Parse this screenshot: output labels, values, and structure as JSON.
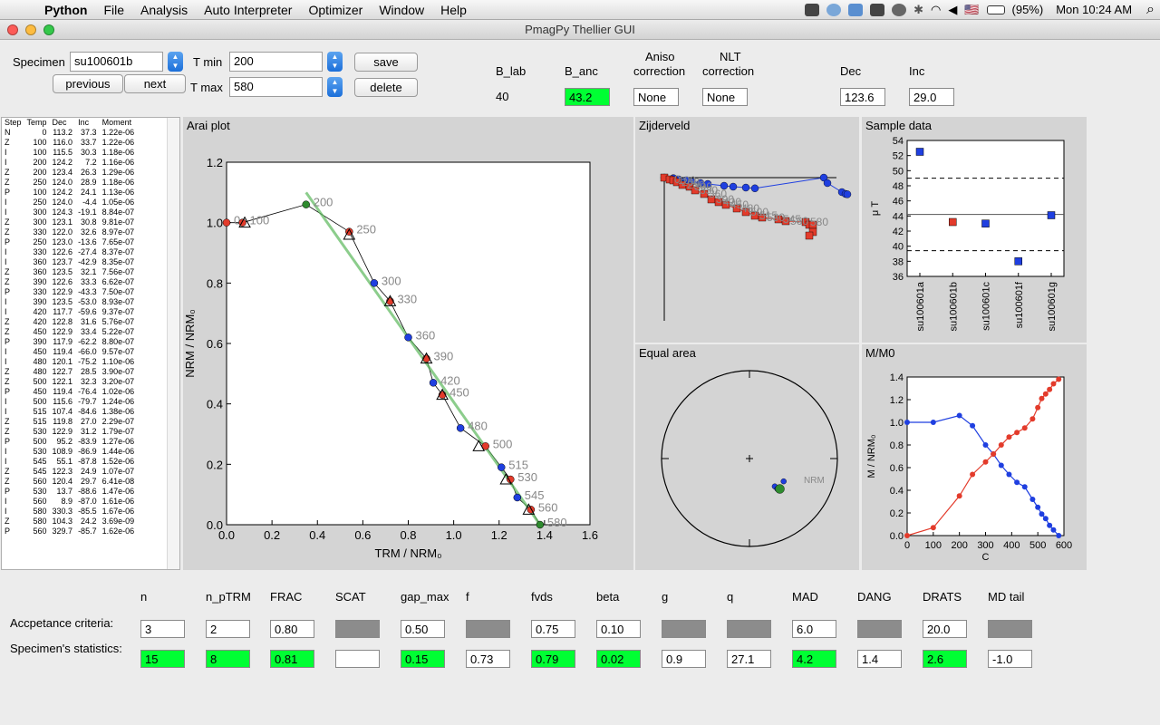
{
  "menubar": {
    "app": "Python",
    "items": [
      "File",
      "Analysis",
      "Auto Interpreter",
      "Optimizer",
      "Window",
      "Help"
    ],
    "battery": "(95%)",
    "clock": "Mon 10:24 AM",
    "flag": "🇺🇸",
    "search": "⌕"
  },
  "window": {
    "title": "PmagPy Thellier GUI"
  },
  "controls": {
    "specimen_label": "Specimen",
    "specimen_value": "su100601b",
    "tmin_label": "T min",
    "tmin_value": "200",
    "tmax_label": "T max",
    "tmax_value": "580",
    "save": "save",
    "delete": "delete",
    "previous": "previous",
    "next": "next"
  },
  "summary": {
    "blab_label": "B_lab",
    "blab_value": "40",
    "banc_label": "B_anc",
    "banc_value": "43.2",
    "aniso_label1": "Aniso",
    "aniso_label2": "correction",
    "aniso_value": "None",
    "nlt_label1": "NLT",
    "nlt_label2": "correction",
    "nlt_value": "None",
    "dec_label": "Dec",
    "dec_value": "123.6",
    "inc_label": "Inc",
    "inc_value": "29.0"
  },
  "log": {
    "headers": [
      "Step",
      "Temp",
      "Dec",
      "Inc",
      "Moment"
    ],
    "rows": [
      [
        "N",
        "0",
        "113.2",
        "37.3",
        "1.22e-06"
      ],
      [
        "Z",
        "100",
        "116.0",
        "33.7",
        "1.22e-06"
      ],
      [
        "I",
        "100",
        "115.5",
        "30.3",
        "1.18e-06"
      ],
      [
        "I",
        "200",
        "124.2",
        "7.2",
        "1.16e-06"
      ],
      [
        "Z",
        "200",
        "123.4",
        "26.3",
        "1.29e-06"
      ],
      [
        "Z",
        "250",
        "124.0",
        "28.9",
        "1.18e-06"
      ],
      [
        "P",
        "100",
        "124.2",
        "24.1",
        "1.13e-06"
      ],
      [
        "I",
        "250",
        "124.0",
        "-4.4",
        "1.05e-06"
      ],
      [
        "I",
        "300",
        "124.3",
        "-19.1",
        "8.84e-07"
      ],
      [
        "Z",
        "300",
        "123.1",
        "30.8",
        "9.81e-07"
      ],
      [
        "Z",
        "330",
        "122.0",
        "32.6",
        "8.97e-07"
      ],
      [
        "P",
        "250",
        "123.0",
        "-13.6",
        "7.65e-07"
      ],
      [
        "I",
        "330",
        "122.6",
        "-27.4",
        "8.37e-07"
      ],
      [
        "I",
        "360",
        "123.7",
        "-42.9",
        "8.35e-07"
      ],
      [
        "Z",
        "360",
        "123.5",
        "32.1",
        "7.56e-07"
      ],
      [
        "Z",
        "390",
        "122.6",
        "33.3",
        "6.62e-07"
      ],
      [
        "P",
        "330",
        "122.9",
        "-43.3",
        "7.50e-07"
      ],
      [
        "I",
        "390",
        "123.5",
        "-53.0",
        "8.93e-07"
      ],
      [
        "I",
        "420",
        "117.7",
        "-59.6",
        "9.37e-07"
      ],
      [
        "Z",
        "420",
        "122.8",
        "31.6",
        "5.76e-07"
      ],
      [
        "Z",
        "450",
        "122.9",
        "33.4",
        "5.22e-07"
      ],
      [
        "P",
        "390",
        "117.9",
        "-62.2",
        "8.80e-07"
      ],
      [
        "I",
        "450",
        "119.4",
        "-66.0",
        "9.57e-07"
      ],
      [
        "I",
        "480",
        "120.1",
        "-75.2",
        "1.10e-06"
      ],
      [
        "Z",
        "480",
        "122.7",
        "28.5",
        "3.90e-07"
      ],
      [
        "Z",
        "500",
        "122.1",
        "32.3",
        "3.20e-07"
      ],
      [
        "P",
        "450",
        "119.4",
        "-76.4",
        "1.02e-06"
      ],
      [
        "I",
        "500",
        "115.6",
        "-79.7",
        "1.24e-06"
      ],
      [
        "I",
        "515",
        "107.4",
        "-84.6",
        "1.38e-06"
      ],
      [
        "Z",
        "515",
        "119.8",
        "27.0",
        "2.29e-07"
      ],
      [
        "Z",
        "530",
        "122.9",
        "31.2",
        "1.79e-07"
      ],
      [
        "P",
        "500",
        "95.2",
        "-83.9",
        "1.27e-06"
      ],
      [
        "I",
        "530",
        "108.9",
        "-86.9",
        "1.44e-06"
      ],
      [
        "I",
        "545",
        "55.1",
        "-87.8",
        "1.52e-06"
      ],
      [
        "Z",
        "545",
        "122.3",
        "24.9",
        "1.07e-07"
      ],
      [
        "Z",
        "560",
        "120.4",
        "29.7",
        "6.41e-08"
      ],
      [
        "P",
        "530",
        "13.7",
        "-88.6",
        "1.47e-06"
      ],
      [
        "I",
        "560",
        "8.9",
        "-87.0",
        "1.61e-06"
      ],
      [
        "I",
        "580",
        "330.3",
        "-85.5",
        "1.67e-06"
      ],
      [
        "Z",
        "580",
        "104.3",
        "24.2",
        "3.69e-09"
      ],
      [
        "P",
        "560",
        "329.7",
        "-85.7",
        "1.62e-06"
      ]
    ]
  },
  "panels": {
    "arai": "Arai plot",
    "zij": "Zijderveld",
    "sample": "Sample data",
    "equal": "Equal area",
    "mm0": "M/M0"
  },
  "chart_data": [
    {
      "type": "scatter",
      "title": "Arai plot",
      "xlabel": "TRM / NRM₀",
      "ylabel": "NRM / NRM₀",
      "xlim": [
        0,
        1.6
      ],
      "ylim": [
        0,
        1.2
      ],
      "xticks": [
        "0.0",
        "0.2",
        "0.4",
        "0.6",
        "0.8",
        "1.0",
        "1.2",
        "1.4",
        "1.6"
      ],
      "yticks": [
        "0.0",
        "0.2",
        "0.4",
        "0.6",
        "0.8",
        "1.0",
        "1.2"
      ],
      "points": [
        [
          0,
          1.0,
          "0"
        ],
        [
          0.07,
          1.0,
          "100"
        ],
        [
          0.35,
          1.06,
          "200"
        ],
        [
          0.54,
          0.97,
          "250"
        ],
        [
          0.65,
          0.8,
          "300"
        ],
        [
          0.72,
          0.74,
          "330"
        ],
        [
          0.8,
          0.62,
          "360"
        ],
        [
          0.88,
          0.55,
          "390"
        ],
        [
          0.91,
          0.47,
          "420"
        ],
        [
          0.95,
          0.43,
          "450"
        ],
        [
          1.03,
          0.32,
          "480"
        ],
        [
          1.14,
          0.26,
          "500"
        ],
        [
          1.21,
          0.19,
          "515"
        ],
        [
          1.25,
          0.15,
          "530"
        ],
        [
          1.28,
          0.09,
          "545"
        ],
        [
          1.34,
          0.05,
          "560"
        ],
        [
          1.38,
          0.0,
          "580"
        ]
      ],
      "ptrm_checks": [
        [
          0.08,
          1.0
        ],
        [
          0.54,
          0.96
        ],
        [
          0.72,
          0.74
        ],
        [
          0.88,
          0.55
        ],
        [
          0.95,
          0.43
        ],
        [
          1.11,
          0.26
        ],
        [
          1.23,
          0.15
        ],
        [
          1.33,
          0.05
        ]
      ],
      "fit_line": [
        [
          0.35,
          1.1
        ],
        [
          1.38,
          0.0
        ]
      ]
    },
    {
      "type": "scatter",
      "title": "Zijderveld",
      "blue": [
        [
          0,
          0
        ],
        [
          5,
          -0.3
        ],
        [
          8,
          -1
        ],
        [
          12,
          -1.5
        ],
        [
          15,
          -2.2
        ],
        [
          20,
          -3
        ],
        [
          24,
          -3.5
        ],
        [
          33,
          -4.5
        ],
        [
          38,
          -5
        ],
        [
          45,
          -5.5
        ],
        [
          50,
          -5.9
        ],
        [
          88,
          0
        ],
        [
          90,
          -3
        ],
        [
          98,
          -8
        ],
        [
          100,
          -9
        ],
        [
          101,
          -9.2
        ]
      ],
      "red": [
        [
          0,
          0
        ],
        [
          3,
          -1
        ],
        [
          5,
          -1.5
        ],
        [
          7,
          -2.5
        ],
        [
          10,
          -4
        ],
        [
          14,
          -5
        ],
        [
          17,
          -7
        ],
        [
          22,
          -9
        ],
        [
          26,
          -12
        ],
        [
          30,
          -13.5
        ],
        [
          34,
          -15
        ],
        [
          40,
          -17
        ],
        [
          45,
          -19
        ],
        [
          50,
          -21
        ],
        [
          54,
          -22
        ],
        [
          63,
          -23
        ],
        [
          67,
          -24
        ],
        [
          78,
          -24.5
        ],
        [
          80,
          -26
        ],
        [
          82,
          -26
        ],
        [
          82,
          -30
        ],
        [
          80,
          -32
        ]
      ],
      "labels": [
        "0",
        "100",
        "200",
        "250",
        "300",
        "330",
        "360",
        "390",
        "420",
        "450",
        "480",
        "500",
        "515",
        "530",
        "545",
        "560",
        "580"
      ]
    },
    {
      "type": "scatter",
      "title": "Sample data",
      "ylabel": "μ T",
      "ylim": [
        36,
        54
      ],
      "yticks": [
        "36",
        "38",
        "40",
        "42",
        "44",
        "46",
        "48",
        "50",
        "52",
        "54"
      ],
      "categories": [
        "su100601a",
        "su100601b",
        "su100601c",
        "su100601f",
        "su100601g"
      ],
      "values": [
        52.5,
        43.2,
        43.0,
        38.0,
        44.1
      ],
      "mean": 44.2,
      "mean_plus": 49.0,
      "mean_minus": 39.4
    },
    {
      "type": "scatter",
      "title": "Equal area",
      "points": [
        [
          0.7,
          0.72,
          "blue"
        ],
        [
          0.72,
          0.74,
          "blue"
        ],
        [
          0.73,
          0.75,
          "blue"
        ],
        [
          0.74,
          0.74,
          "green"
        ],
        [
          0.77,
          0.68,
          "blue"
        ]
      ],
      "label": "NRM"
    },
    {
      "type": "line",
      "title": "M/M0",
      "xlabel": "C",
      "ylabel": "M / NRM₀",
      "xlim": [
        0,
        600
      ],
      "ylim": [
        0,
        1.4
      ],
      "xticks": [
        "0",
        "100",
        "200",
        "300",
        "400",
        "500",
        "600"
      ],
      "yticks": [
        "0.0",
        "0.2",
        "0.4",
        "0.6",
        "0.8",
        "1.0",
        "1.2",
        "1.4"
      ],
      "series": [
        {
          "color": "#1f3fe0",
          "x": [
            0,
            100,
            200,
            250,
            300,
            330,
            360,
            390,
            420,
            450,
            480,
            500,
            515,
            530,
            545,
            560,
            580
          ],
          "y": [
            1.0,
            1.0,
            1.06,
            0.97,
            0.8,
            0.72,
            0.62,
            0.54,
            0.47,
            0.43,
            0.32,
            0.25,
            0.19,
            0.15,
            0.09,
            0.05,
            0.0
          ]
        },
        {
          "color": "#e33b2b",
          "x": [
            0,
            100,
            200,
            250,
            300,
            330,
            360,
            390,
            420,
            450,
            480,
            500,
            515,
            530,
            545,
            560,
            580
          ],
          "y": [
            0,
            0.07,
            0.35,
            0.54,
            0.65,
            0.72,
            0.8,
            0.87,
            0.91,
            0.95,
            1.03,
            1.13,
            1.21,
            1.25,
            1.29,
            1.34,
            1.38
          ]
        }
      ]
    }
  ],
  "stats": {
    "headers": [
      "n",
      "n_pTRM",
      "FRAC",
      "SCAT",
      "gap_max",
      "f",
      "fvds",
      "beta",
      "g",
      "q",
      "MAD",
      "DANG",
      "DRATS",
      "MD tail"
    ],
    "criteria_label": "Accpetance criteria:",
    "criteria": [
      "3",
      "2",
      "0.80",
      "",
      "0.50",
      "",
      "0.75",
      "0.10",
      "",
      "",
      "6.0",
      "",
      "20.0",
      ""
    ],
    "criteria_grey": [
      false,
      false,
      false,
      true,
      false,
      true,
      false,
      false,
      true,
      true,
      false,
      true,
      false,
      true
    ],
    "spec_label": "Specimen's statistics:",
    "spec": [
      "15",
      "8",
      "0.81",
      "",
      "0.15",
      "0.73",
      "0.79",
      "0.02",
      "0.9",
      "27.1",
      "4.2",
      "1.4",
      "2.6",
      "-1.0"
    ],
    "spec_green": [
      true,
      true,
      true,
      false,
      true,
      false,
      true,
      true,
      false,
      false,
      true,
      false,
      true,
      false
    ],
    "colors": {
      "pass": "#00ff33",
      "disabled": "#8c8c8c"
    }
  }
}
